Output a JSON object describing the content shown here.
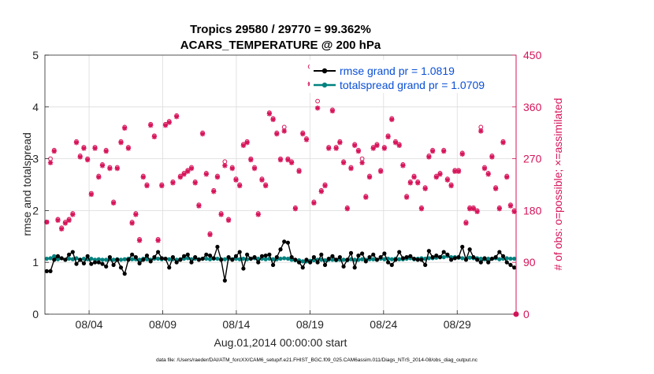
{
  "chart_data": {
    "type": "line",
    "title_line1": "Tropics 29580 / 29770 = 99.362%",
    "title_line2": "ACARS_TEMPERATURE @ 200 hPa",
    "xlabel": "Aug.01,2014 00:00:00 start",
    "ylabel_left": "rmse and totalspread",
    "ylabel_right": "# of obs: o=possible; ×=assimilated",
    "footnote": "data file: /Users/raeder/DAI/ATM_forcXX/CAM6_setup/f.e21.FHIST_BGC.f09_025.CAM6assim.011/Diags_NTrS_2014-08/obs_diag_output.nc",
    "xlim": [
      1,
      33
    ],
    "ylim_left": [
      0,
      5
    ],
    "ylim_right": [
      0,
      450
    ],
    "x_ticks": [
      {
        "value": 4,
        "label": "08/04"
      },
      {
        "value": 9,
        "label": "08/09"
      },
      {
        "value": 14,
        "label": "08/14"
      },
      {
        "value": 19,
        "label": "08/19"
      },
      {
        "value": 24,
        "label": "08/24"
      },
      {
        "value": 29,
        "label": "08/29"
      }
    ],
    "y_ticks_left": [
      "0",
      "1",
      "2",
      "3",
      "4",
      "5"
    ],
    "y_ticks_right": [
      "0",
      "90",
      "180",
      "270",
      "360",
      "450"
    ],
    "colors": {
      "rmse": "#000000",
      "totalspread": "#00827f",
      "obs": "#d6145a",
      "legend_text": "#0a4fd6"
    },
    "series": [
      {
        "name": "rmse grand pr = 1.0819",
        "axis": "left",
        "values": [
          0.83,
          0.83,
          1.05,
          1.12,
          1.08,
          1.05,
          1.15,
          1.2,
          0.97,
          1.05,
          0.98,
          1.12,
          0.97,
          1.0,
          1.0,
          0.97,
          0.92,
          1.1,
          0.95,
          1.05,
          0.9,
          0.78,
          1.05,
          1.15,
          1.1,
          0.98,
          1.05,
          1.13,
          1.02,
          1.1,
          1.2,
          1.08,
          1.07,
          0.9,
          1.1,
          1.0,
          1.05,
          1.12,
          1.15,
          1.0,
          1.1,
          1.05,
          1.07,
          1.15,
          1.13,
          1.08,
          1.3,
          1.05,
          0.65,
          1.1,
          1.05,
          1.12,
          1.2,
          0.88,
          1.15,
          1.07,
          1.1,
          1.0,
          1.12,
          1.13,
          1.15,
          0.95,
          1.1,
          1.25,
          1.4,
          1.38,
          1.1,
          1.05,
          1.0,
          0.9,
          1.05,
          1.0,
          1.1,
          1.0,
          1.15,
          0.95,
          1.07,
          1.12,
          1.05,
          1.1,
          0.92,
          1.05,
          1.18,
          0.9,
          1.13,
          1.17,
          1.02,
          1.1,
          1.15,
          1.05,
          1.1,
          1.17,
          1.0,
          0.95,
          1.05,
          1.2,
          1.08,
          1.1,
          1.12,
          1.07,
          1.05,
          1.05,
          0.95,
          1.22,
          1.1,
          1.13,
          1.1,
          1.2,
          1.15,
          1.05,
          1.08,
          1.1,
          1.3,
          1.05,
          1.25,
          1.1,
          1.05,
          1.0,
          1.08,
          1.0,
          1.07,
          1.1,
          1.2,
          1.12,
          1.0,
          0.95,
          0.9
        ]
      },
      {
        "name": "totalspread grand pr = 1.0709",
        "axis": "left",
        "values": [
          1.07,
          1.08,
          1.12,
          1.06,
          1.08,
          1.05,
          1.07,
          1.06,
          1.08,
          1.05,
          1.07,
          1.06,
          1.07,
          1.05,
          1.06,
          1.05,
          1.05,
          1.06,
          1.05,
          1.06,
          1.05,
          1.06,
          1.07,
          1.06,
          1.06,
          1.05,
          1.07,
          1.06,
          1.05,
          1.07,
          1.07,
          1.06,
          1.07,
          1.06,
          1.06,
          1.05,
          1.06,
          1.07,
          1.08,
          1.06,
          1.07,
          1.06,
          1.07,
          1.07,
          1.06,
          1.07,
          1.07,
          1.06,
          1.06,
          1.07,
          1.06,
          1.07,
          1.06,
          1.07,
          1.06,
          1.07,
          1.08,
          1.07,
          1.07,
          1.06,
          1.07,
          1.06,
          1.06,
          1.07,
          1.08,
          1.07,
          1.05,
          1.04,
          1.04,
          1.02,
          1.02,
          1.03,
          1.04,
          1.05,
          1.05,
          1.04,
          1.05,
          1.05,
          1.04,
          1.05,
          1.05,
          1.04,
          1.06,
          1.05,
          1.05,
          1.06,
          1.05,
          1.06,
          1.06,
          1.05,
          1.07,
          1.06,
          1.07,
          1.06,
          1.07,
          1.06,
          1.06,
          1.07,
          1.08,
          1.06,
          1.07,
          1.08,
          1.07,
          1.08,
          1.08,
          1.09,
          1.1,
          1.1,
          1.12,
          1.1,
          1.1,
          1.09,
          1.08,
          1.07,
          1.09,
          1.08,
          1.08,
          1.07,
          1.06,
          1.07,
          1.07,
          1.08,
          1.06,
          1.07,
          1.08,
          1.07,
          1.07
        ]
      },
      {
        "name": "obs possible",
        "axis": "right",
        "values": [
          160,
          270,
          285,
          165,
          150,
          160,
          165,
          175,
          300,
          275,
          290,
          270,
          210,
          290,
          240,
          260,
          285,
          255,
          195,
          255,
          300,
          325,
          290,
          160,
          175,
          130,
          240,
          225,
          330,
          310,
          130,
          225,
          330,
          335,
          230,
          345,
          240,
          245,
          250,
          255,
          230,
          190,
          315,
          245,
          140,
          215,
          240,
          175,
          265,
          165,
          255,
          235,
          225,
          295,
          300,
          270,
          255,
          175,
          235,
          225,
          350,
          340,
          315,
          270,
          325,
          270,
          265,
          185,
          250,
          315,
          305,
          430,
          195,
          370,
          215,
          225,
          290,
          355,
          290,
          300,
          265,
          185,
          255,
          295,
          285,
          270,
          205,
          240,
          290,
          295,
          250,
          290,
          310,
          340,
          300,
          295,
          260,
          205,
          230,
          240,
          230,
          185,
          220,
          275,
          285,
          240,
          245,
          285,
          235,
          225,
          250,
          250,
          280,
          160,
          185,
          185,
          180,
          325,
          255,
          245,
          275,
          220,
          185,
          300,
          240,
          190,
          180
        ]
      },
      {
        "name": "obs assimilated",
        "axis": "right",
        "values": [
          160,
          263,
          283,
          163,
          148,
          158,
          163,
          173,
          298,
          273,
          288,
          268,
          208,
          288,
          238,
          258,
          283,
          253,
          193,
          253,
          298,
          323,
          288,
          158,
          173,
          128,
          238,
          223,
          328,
          308,
          128,
          223,
          328,
          333,
          228,
          343,
          238,
          243,
          248,
          253,
          228,
          188,
          313,
          243,
          138,
          213,
          238,
          173,
          258,
          163,
          253,
          233,
          223,
          293,
          298,
          268,
          253,
          173,
          233,
          223,
          348,
          338,
          313,
          268,
          318,
          268,
          263,
          183,
          248,
          313,
          303,
          400,
          193,
          358,
          213,
          223,
          288,
          353,
          288,
          298,
          263,
          183,
          253,
          293,
          283,
          263,
          203,
          238,
          288,
          293,
          248,
          288,
          308,
          338,
          298,
          293,
          258,
          203,
          228,
          238,
          228,
          183,
          218,
          273,
          283,
          238,
          243,
          283,
          233,
          223,
          248,
          248,
          278,
          158,
          183,
          183,
          178,
          318,
          253,
          243,
          273,
          218,
          183,
          298,
          238,
          188,
          178
        ]
      }
    ],
    "obs_last_value": 0
  }
}
